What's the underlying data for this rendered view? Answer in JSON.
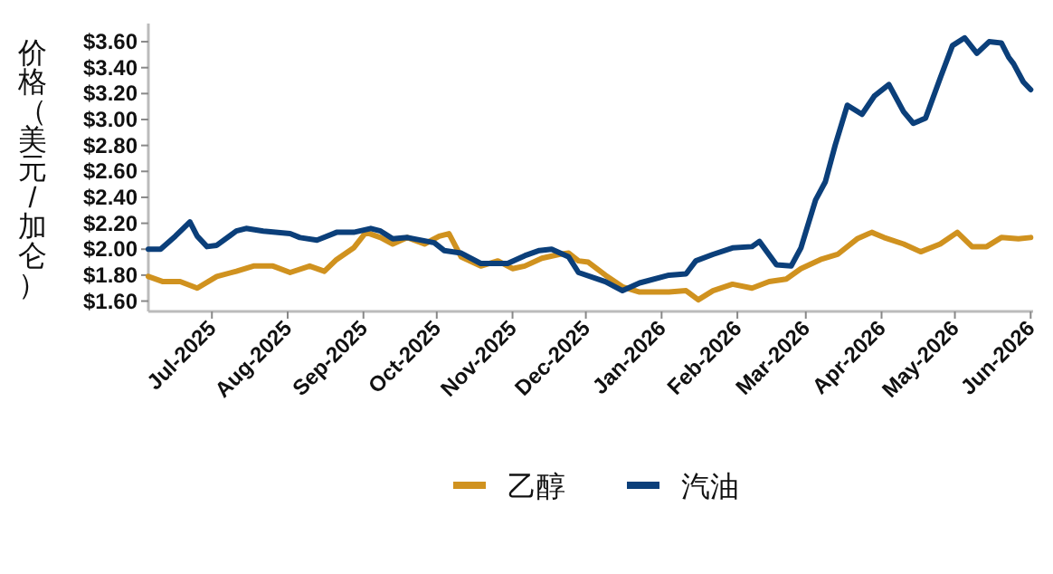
{
  "chart_data": {
    "type": "line",
    "ylabel": "价格（美元/加仑）",
    "legend": "bottom",
    "xlim": [
      "2025-06-05",
      "2026-06-02"
    ],
    "ylim": [
      1.52,
      3.74
    ],
    "xticks": [
      {
        "value": "2025-07-01",
        "label": "Jul-2025"
      },
      {
        "value": "2025-08-01",
        "label": "Aug-2025"
      },
      {
        "value": "2025-09-01",
        "label": "Sep-2025"
      },
      {
        "value": "2025-10-01",
        "label": "Oct-2025"
      },
      {
        "value": "2025-11-01",
        "label": "Nov-2025"
      },
      {
        "value": "2025-12-01",
        "label": "Dec-2025"
      },
      {
        "value": "2026-01-01",
        "label": "Jan-2026"
      },
      {
        "value": "2026-02-01",
        "label": "Feb-2026"
      },
      {
        "value": "2026-03-01",
        "label": "Mar-2026"
      },
      {
        "value": "2026-04-01",
        "label": "Apr-2026"
      },
      {
        "value": "2026-05-01",
        "label": "May-2026"
      },
      {
        "value": "2026-06-01",
        "label": "Jun-2026"
      }
    ],
    "yticks": [
      {
        "value": 1.6,
        "label": "$1.60"
      },
      {
        "value": 1.8,
        "label": "$1.80"
      },
      {
        "value": 2.0,
        "label": "$2.00"
      },
      {
        "value": 2.2,
        "label": "$2.20"
      },
      {
        "value": 2.4,
        "label": "$2.40"
      },
      {
        "value": 2.6,
        "label": "$2.60"
      },
      {
        "value": 2.8,
        "label": "$2.80"
      },
      {
        "value": 3.0,
        "label": "$3.00"
      },
      {
        "value": 3.2,
        "label": "$3.20"
      },
      {
        "value": 3.4,
        "label": "$3.40"
      },
      {
        "value": 3.6,
        "label": "$3.60"
      }
    ],
    "series": [
      {
        "name": "乙醇",
        "color": "#d0921f",
        "x": [
          "2025-06-05",
          "2025-06-11",
          "2025-06-18",
          "2025-06-25",
          "2025-07-03",
          "2025-07-11",
          "2025-07-18",
          "2025-07-26",
          "2025-08-02",
          "2025-08-10",
          "2025-08-16",
          "2025-08-21",
          "2025-08-28",
          "2025-09-02",
          "2025-09-08",
          "2025-09-13",
          "2025-09-19",
          "2025-09-26",
          "2025-10-02",
          "2025-10-06",
          "2025-10-11",
          "2025-10-19",
          "2025-10-26",
          "2025-11-01",
          "2025-11-06",
          "2025-11-13",
          "2025-11-20",
          "2025-11-24",
          "2025-11-28",
          "2025-12-02",
          "2025-12-09",
          "2025-12-16",
          "2025-12-23",
          "2026-01-04",
          "2026-01-11",
          "2026-01-16",
          "2026-01-22",
          "2026-01-30",
          "2026-02-07",
          "2026-02-14",
          "2026-02-21",
          "2026-02-27",
          "2026-03-07",
          "2026-03-14",
          "2026-03-22",
          "2026-03-28",
          "2026-04-02",
          "2026-04-10",
          "2026-04-17",
          "2026-04-25",
          "2026-05-02",
          "2026-05-08",
          "2026-05-14",
          "2026-05-20",
          "2026-05-27",
          "2026-06-01"
        ],
        "values": [
          1.79,
          1.75,
          1.75,
          1.7,
          1.79,
          1.83,
          1.87,
          1.87,
          1.82,
          1.87,
          1.83,
          1.92,
          2.01,
          2.13,
          2.09,
          2.04,
          2.09,
          2.04,
          2.1,
          2.12,
          1.94,
          1.87,
          1.91,
          1.85,
          1.87,
          1.93,
          1.96,
          1.97,
          1.91,
          1.9,
          1.8,
          1.71,
          1.67,
          1.67,
          1.68,
          1.61,
          1.68,
          1.73,
          1.7,
          1.75,
          1.77,
          1.85,
          1.92,
          1.96,
          2.08,
          2.13,
          2.09,
          2.04,
          1.98,
          2.04,
          2.13,
          2.02,
          2.02,
          2.09,
          2.08,
          2.09
        ]
      },
      {
        "name": "汽油",
        "color": "#0b3f7a",
        "x": [
          "2025-06-05",
          "2025-06-10",
          "2025-06-16",
          "2025-06-22",
          "2025-06-25",
          "2025-06-29",
          "2025-07-03",
          "2025-07-11",
          "2025-07-15",
          "2025-07-22",
          "2025-08-02",
          "2025-08-06",
          "2025-08-13",
          "2025-08-21",
          "2025-08-28",
          "2025-09-04",
          "2025-09-08",
          "2025-09-13",
          "2025-09-19",
          "2025-09-30",
          "2025-10-04",
          "2025-10-11",
          "2025-10-19",
          "2025-10-30",
          "2025-11-06",
          "2025-11-12",
          "2025-11-17",
          "2025-11-24",
          "2025-11-28",
          "2025-12-09",
          "2025-12-16",
          "2025-12-23",
          "2026-01-04",
          "2026-01-11",
          "2026-01-15",
          "2026-01-22",
          "2026-01-30",
          "2026-02-07",
          "2026-02-10",
          "2026-02-17",
          "2026-02-23",
          "2026-02-27",
          "2026-03-05",
          "2026-03-09",
          "2026-03-13",
          "2026-03-18",
          "2026-03-24",
          "2026-03-29",
          "2026-04-04",
          "2026-04-10",
          "2026-04-14",
          "2026-04-19",
          "2026-04-25",
          "2026-04-30",
          "2026-05-05",
          "2026-05-10",
          "2026-05-15",
          "2026-05-20",
          "2026-05-23",
          "2026-05-25",
          "2026-05-29",
          "2026-06-01"
        ],
        "values": [
          2.0,
          2.0,
          2.1,
          2.21,
          2.1,
          2.02,
          2.03,
          2.14,
          2.16,
          2.14,
          2.12,
          2.09,
          2.07,
          2.13,
          2.13,
          2.16,
          2.14,
          2.08,
          2.09,
          2.05,
          1.99,
          1.97,
          1.89,
          1.89,
          1.95,
          1.99,
          2.0,
          1.94,
          1.82,
          1.75,
          1.68,
          1.74,
          1.8,
          1.81,
          1.91,
          1.96,
          2.01,
          2.02,
          2.06,
          1.88,
          1.87,
          2.01,
          2.38,
          2.52,
          2.8,
          3.11,
          3.04,
          3.18,
          3.27,
          3.06,
          2.97,
          3.01,
          3.32,
          3.57,
          3.63,
          3.51,
          3.6,
          3.59,
          3.48,
          3.43,
          3.29,
          3.23
        ]
      }
    ]
  }
}
